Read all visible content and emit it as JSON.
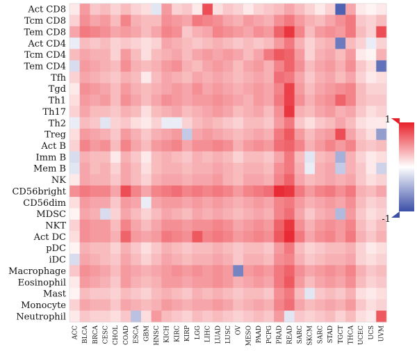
{
  "chart_data": {
    "type": "heatmap",
    "rows": [
      "Act CD8",
      "Tcm CD8",
      "Tem CD8",
      "Act CD4",
      "Tcm CD4",
      "Tem CD4",
      "Tfh",
      "Tgd",
      "Th1",
      "Th17",
      "Th2",
      "Treg",
      "Act B",
      "Imm B",
      "Mem B",
      "NK",
      "CD56bright",
      "CD56dim",
      "MDSC",
      "NKT",
      "Act DC",
      "pDC",
      "iDC",
      "Macrophage",
      "Eosinophil",
      "Mast",
      "Monocyte",
      "Neutrophil"
    ],
    "columns": [
      "ACC",
      "BLCA",
      "BRCA",
      "CESC",
      "CHOL",
      "COAD",
      "ESCA",
      "GBM",
      "HNSC",
      "KICH",
      "KIRC",
      "KIRP",
      "LGG",
      "LIHC",
      "LUAD",
      "LUSC",
      "OV",
      "MESO",
      "PAAD",
      "PCPG",
      "PRAD",
      "READ",
      "SARC",
      "SKCM",
      "SARC",
      "STAD",
      "TGCT",
      "THCA",
      "UCEC",
      "UCS",
      "UVM"
    ],
    "scale": {
      "min": -1,
      "max": 1,
      "min_label": "-1",
      "max_label": "1",
      "low_color": "#3b4fa8",
      "mid_color": "#ffffff",
      "high_color": "#e8202a"
    },
    "values": [
      [
        0.1,
        0.45,
        0.25,
        0.3,
        0.2,
        0.3,
        0.2,
        0.15,
        -0.15,
        0.45,
        0.2,
        0.25,
        0.1,
        0.8,
        0.15,
        0.25,
        0.2,
        0.1,
        0.2,
        0.25,
        0.3,
        0.4,
        0.3,
        0.2,
        0.1,
        0.2,
        -0.9,
        0.4,
        0.1,
        0.05,
        0.1
      ],
      [
        0.2,
        0.5,
        0.4,
        0.45,
        0.3,
        0.55,
        0.35,
        0.3,
        0.3,
        0.5,
        0.45,
        0.4,
        0.6,
        0.55,
        0.5,
        0.4,
        0.35,
        0.45,
        0.4,
        0.35,
        0.5,
        0.6,
        0.45,
        0.35,
        0.3,
        0.4,
        0.5,
        0.6,
        0.25,
        0.2,
        0.3
      ],
      [
        0.4,
        0.6,
        0.55,
        0.5,
        0.4,
        0.45,
        0.4,
        0.3,
        0.4,
        0.55,
        0.5,
        0.25,
        0.35,
        0.4,
        0.55,
        0.5,
        0.45,
        0.4,
        0.5,
        0.45,
        0.7,
        0.9,
        0.55,
        0.3,
        0.45,
        0.5,
        0.45,
        0.6,
        0.3,
        0.2,
        0.8
      ],
      [
        -0.1,
        0.3,
        0.25,
        0.3,
        0.2,
        0.25,
        0.2,
        0.15,
        0.2,
        0.4,
        0.35,
        0.3,
        0.25,
        0.3,
        0.35,
        0.3,
        0.25,
        0.3,
        0.25,
        0.3,
        0.45,
        0.6,
        0.35,
        0.2,
        0.3,
        0.35,
        -0.75,
        0.3,
        0.2,
        -0.1,
        0.2
      ],
      [
        0.3,
        0.4,
        0.35,
        0.35,
        0.2,
        0.45,
        0.3,
        0.15,
        0.3,
        0.35,
        0.4,
        0.3,
        0.4,
        0.45,
        0.4,
        0.45,
        0.4,
        0.3,
        0.4,
        0.6,
        0.75,
        0.7,
        0.45,
        0.2,
        0.35,
        0.4,
        0.3,
        0.45,
        0.1,
        0.05,
        0.35
      ],
      [
        -0.2,
        0.45,
        0.4,
        0.35,
        0.3,
        0.5,
        0.35,
        0.3,
        0.35,
        0.45,
        0.5,
        0.35,
        0.3,
        0.4,
        0.45,
        0.4,
        0.3,
        0.4,
        0.45,
        0.35,
        0.55,
        0.7,
        0.5,
        0.3,
        0.4,
        0.45,
        0.35,
        0.5,
        0.25,
        0.15,
        -0.8
      ],
      [
        0.2,
        0.4,
        0.35,
        0.3,
        0.25,
        0.35,
        0.3,
        0.1,
        0.3,
        0.4,
        0.35,
        0.3,
        0.4,
        0.35,
        0.4,
        0.35,
        0.3,
        0.35,
        0.4,
        0.35,
        0.65,
        0.6,
        0.4,
        0.25,
        0.35,
        0.4,
        0.3,
        0.4,
        0.2,
        0.1,
        0.15
      ],
      [
        0.1,
        0.5,
        0.45,
        0.4,
        0.3,
        0.45,
        0.35,
        0.3,
        0.35,
        0.4,
        0.45,
        0.4,
        0.5,
        0.4,
        0.45,
        0.4,
        0.35,
        0.4,
        0.45,
        0.4,
        0.55,
        0.85,
        0.45,
        0.3,
        0.4,
        0.45,
        0.5,
        0.55,
        0.3,
        0.2,
        0.2
      ],
      [
        0.15,
        0.45,
        0.4,
        0.45,
        0.3,
        0.5,
        0.4,
        0.3,
        0.4,
        0.5,
        0.45,
        0.4,
        0.45,
        0.45,
        0.5,
        0.45,
        0.4,
        0.35,
        0.45,
        0.4,
        0.6,
        0.85,
        0.5,
        0.35,
        0.45,
        0.5,
        0.7,
        0.55,
        0.3,
        0.25,
        0.25
      ],
      [
        0.2,
        0.4,
        0.3,
        0.3,
        0.25,
        0.35,
        0.3,
        0.15,
        0.3,
        0.35,
        0.4,
        0.3,
        0.35,
        0.4,
        0.45,
        0.4,
        0.3,
        0.35,
        0.4,
        0.3,
        0.5,
        0.9,
        0.35,
        0.3,
        0.4,
        0.45,
        0.35,
        0.4,
        0.25,
        0.15,
        0.2
      ],
      [
        -0.1,
        0.3,
        0.25,
        -0.15,
        0.2,
        0.25,
        0.15,
        0.1,
        0.2,
        -0.1,
        -0.1,
        0.2,
        0.3,
        0.35,
        0.3,
        0.25,
        0.2,
        0.3,
        0.3,
        0.25,
        0.45,
        0.6,
        0.25,
        0.15,
        0.25,
        0.3,
        0.4,
        0.3,
        0.15,
        0.1,
        0.1
      ],
      [
        0.15,
        0.45,
        0.4,
        0.35,
        0.25,
        0.45,
        0.35,
        0.25,
        0.35,
        0.4,
        0.45,
        -0.3,
        0.4,
        0.45,
        0.4,
        0.35,
        0.3,
        0.35,
        0.4,
        0.35,
        0.6,
        0.75,
        0.45,
        0.3,
        0.4,
        0.45,
        0.8,
        0.4,
        0.25,
        0.15,
        -0.55
      ],
      [
        0.2,
        0.55,
        0.45,
        0.5,
        0.3,
        0.55,
        0.4,
        0.3,
        0.45,
        0.5,
        0.55,
        0.4,
        0.5,
        0.5,
        0.55,
        0.5,
        0.35,
        0.45,
        0.5,
        0.45,
        0.65,
        0.7,
        0.55,
        0.35,
        0.45,
        0.55,
        0.45,
        0.55,
        0.3,
        0.25,
        0.3
      ],
      [
        -0.2,
        0.35,
        0.3,
        0.3,
        0.1,
        0.35,
        0.25,
        0.1,
        0.3,
        0.35,
        0.3,
        0.25,
        0.35,
        0.3,
        0.35,
        0.3,
        0.2,
        0.3,
        0.3,
        0.25,
        0.4,
        0.6,
        0.3,
        -0.15,
        0.3,
        0.35,
        -0.45,
        0.35,
        0.2,
        0.1,
        0.15
      ],
      [
        -0.15,
        0.4,
        0.3,
        0.35,
        0.2,
        0.4,
        0.3,
        0.15,
        0.3,
        0.35,
        0.35,
        0.3,
        0.35,
        0.35,
        0.4,
        0.35,
        0.3,
        0.35,
        0.35,
        0.3,
        0.5,
        0.6,
        0.35,
        -0.1,
        0.35,
        0.4,
        -0.3,
        0.35,
        0.25,
        0.1,
        -0.25
      ],
      [
        0.1,
        0.4,
        0.35,
        0.35,
        0.25,
        0.4,
        0.3,
        0.2,
        0.35,
        0.4,
        0.4,
        0.35,
        0.4,
        0.4,
        0.45,
        0.35,
        0.3,
        0.4,
        0.4,
        0.35,
        0.55,
        0.7,
        0.4,
        0.3,
        0.35,
        0.4,
        0.35,
        0.4,
        0.25,
        0.15,
        0.2
      ],
      [
        0.5,
        0.6,
        0.55,
        0.55,
        0.4,
        0.8,
        0.55,
        0.4,
        0.55,
        0.6,
        0.65,
        0.55,
        0.6,
        0.55,
        0.6,
        0.55,
        0.45,
        0.55,
        0.6,
        0.65,
        0.95,
        0.9,
        0.6,
        0.45,
        0.55,
        0.6,
        0.5,
        0.6,
        0.35,
        0.3,
        0.4
      ],
      [
        0.15,
        0.45,
        0.4,
        0.4,
        0.25,
        0.45,
        0.4,
        -0.1,
        0.4,
        0.45,
        0.45,
        0.4,
        0.45,
        0.4,
        0.45,
        0.4,
        0.35,
        0.4,
        0.45,
        0.4,
        0.55,
        0.6,
        0.45,
        0.35,
        0.4,
        0.45,
        0.4,
        0.5,
        0.3,
        0.2,
        0.25
      ],
      [
        0.05,
        0.4,
        0.35,
        -0.2,
        0.2,
        0.4,
        0.3,
        0.2,
        0.3,
        0.4,
        0.35,
        0.3,
        0.4,
        0.35,
        0.4,
        0.35,
        0.3,
        0.35,
        0.4,
        0.35,
        0.55,
        0.65,
        0.4,
        0.25,
        0.35,
        0.4,
        -0.4,
        0.45,
        0.25,
        0.15,
        0.2
      ],
      [
        0.2,
        0.5,
        0.45,
        0.45,
        0.3,
        0.55,
        0.4,
        0.3,
        0.4,
        0.5,
        0.5,
        0.45,
        0.5,
        0.5,
        0.55,
        0.5,
        0.4,
        0.45,
        0.5,
        0.45,
        0.7,
        0.9,
        0.5,
        0.35,
        0.45,
        0.5,
        0.45,
        0.55,
        0.3,
        0.2,
        0.3
      ],
      [
        0.15,
        0.5,
        0.45,
        0.45,
        0.35,
        0.7,
        0.45,
        0.4,
        0.45,
        0.6,
        0.55,
        0.5,
        0.75,
        0.55,
        0.6,
        0.55,
        0.45,
        0.5,
        0.55,
        0.5,
        0.75,
        0.95,
        0.6,
        0.4,
        0.5,
        0.55,
        0.45,
        0.6,
        0.35,
        0.25,
        0.35
      ],
      [
        0.05,
        0.35,
        0.3,
        0.3,
        0.2,
        0.35,
        0.25,
        0.15,
        0.25,
        0.35,
        0.3,
        0.25,
        0.3,
        0.3,
        0.35,
        0.3,
        0.25,
        0.3,
        0.3,
        0.25,
        0.45,
        0.6,
        0.3,
        0.2,
        0.25,
        0.3,
        0.3,
        0.35,
        0.2,
        0.1,
        0.15
      ],
      [
        -0.2,
        0.4,
        0.35,
        0.3,
        0.25,
        0.4,
        0.3,
        0.2,
        0.3,
        0.4,
        0.35,
        0.3,
        0.35,
        0.35,
        0.4,
        0.35,
        0.25,
        0.35,
        0.35,
        0.3,
        0.5,
        0.55,
        0.35,
        0.25,
        0.3,
        0.35,
        0.35,
        0.4,
        0.2,
        0.15,
        0.2
      ],
      [
        0.25,
        0.5,
        0.45,
        0.4,
        0.3,
        0.45,
        0.4,
        0.35,
        0.4,
        0.45,
        0.5,
        0.45,
        0.5,
        0.45,
        0.5,
        0.45,
        -0.7,
        0.45,
        0.5,
        0.45,
        0.6,
        0.7,
        0.5,
        0.4,
        0.45,
        0.5,
        0.45,
        0.55,
        0.35,
        0.25,
        0.3
      ],
      [
        0.1,
        0.45,
        0.4,
        0.35,
        0.25,
        0.45,
        0.35,
        0.3,
        0.35,
        0.45,
        0.45,
        0.4,
        0.45,
        0.45,
        0.5,
        0.45,
        0.35,
        0.4,
        0.45,
        0.4,
        0.6,
        0.75,
        0.45,
        0.3,
        0.4,
        0.45,
        0.4,
        0.5,
        0.3,
        0.2,
        0.25
      ],
      [
        0.05,
        0.3,
        0.25,
        0.25,
        0.2,
        0.3,
        0.25,
        0.2,
        0.3,
        0.35,
        0.3,
        0.25,
        0.35,
        0.3,
        0.35,
        0.3,
        0.25,
        0.3,
        0.3,
        0.25,
        0.5,
        0.6,
        0.3,
        -0.15,
        0.25,
        0.3,
        0.25,
        0.35,
        0.15,
        0.1,
        0.15
      ],
      [
        0.2,
        0.4,
        0.35,
        0.35,
        0.25,
        0.4,
        0.35,
        0.3,
        0.35,
        0.45,
        0.4,
        0.35,
        0.4,
        0.4,
        0.45,
        0.4,
        0.3,
        0.35,
        0.4,
        0.35,
        0.55,
        0.65,
        0.4,
        0.3,
        0.35,
        0.4,
        0.35,
        0.45,
        0.25,
        0.15,
        0.2
      ],
      [
        0.1,
        0.25,
        0.2,
        0.2,
        0.15,
        0.25,
        -0.35,
        0.15,
        0.45,
        0.3,
        0.25,
        0.2,
        0.3,
        0.25,
        0.3,
        0.25,
        0.2,
        0.25,
        0.3,
        0.25,
        0.45,
        -0.15,
        0.25,
        0.2,
        0.25,
        0.3,
        0.2,
        0.3,
        0.15,
        0.1,
        0.75
      ]
    ]
  }
}
